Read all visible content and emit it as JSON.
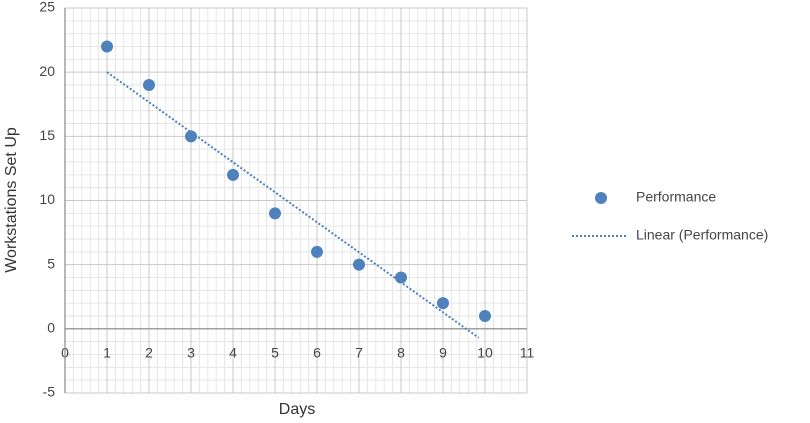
{
  "chart_data": {
    "type": "scatter",
    "x_label": "Days",
    "y_label": "Workstations Set Up",
    "xlim": [
      0,
      11
    ],
    "xticks": [
      0,
      1,
      2,
      3,
      4,
      5,
      6,
      7,
      8,
      9,
      10,
      11
    ],
    "ylim": [
      -5,
      25
    ],
    "yticks": [
      -5,
      0,
      5,
      10,
      15,
      20,
      25
    ],
    "grid": true,
    "minor_grid": true,
    "legend": "right",
    "series": [
      {
        "name": "Performance",
        "color": "#4f81bd",
        "mode": "markers",
        "x": [
          1,
          2,
          3,
          4,
          5,
          6,
          7,
          8,
          9,
          10
        ],
        "values": [
          22,
          19,
          15,
          12,
          9,
          6,
          5,
          4,
          2,
          1
        ]
      },
      {
        "name": "Linear (Performance)",
        "color": "#4f81bd",
        "mode": "dotted-line",
        "x": [
          1,
          9.85
        ],
        "values": [
          20,
          -0.7
        ]
      }
    ]
  }
}
